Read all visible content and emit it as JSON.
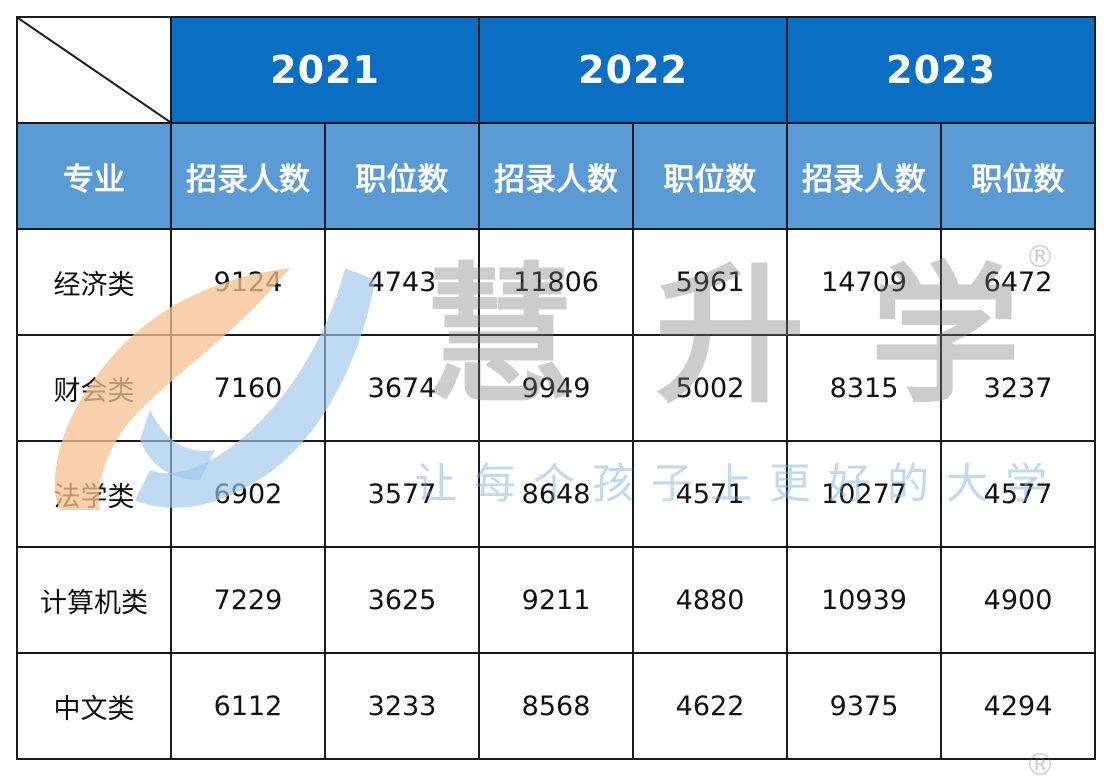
{
  "table": {
    "years": [
      "2021",
      "2022",
      "2023"
    ],
    "major_header": "专业",
    "col_enroll": "招录人数",
    "col_positions": "职位数",
    "rows": [
      {
        "major": "经济类",
        "values": [
          "9124",
          "4743",
          "11806",
          "5961",
          "14709",
          "6472"
        ]
      },
      {
        "major": "财会类",
        "values": [
          "7160",
          "3674",
          "9949",
          "5002",
          "8315",
          "3237"
        ]
      },
      {
        "major": "法学类",
        "values": [
          "6902",
          "3577",
          "8648",
          "4571",
          "10277",
          "4577"
        ]
      },
      {
        "major": "计算机类",
        "values": [
          "7229",
          "3625",
          "9211",
          "4880",
          "10939",
          "4900"
        ]
      },
      {
        "major": "中文类",
        "values": [
          "6112",
          "3233",
          "8568",
          "4622",
          "9375",
          "4294"
        ]
      }
    ]
  },
  "watermark": {
    "chars": [
      "慧",
      "升",
      "学"
    ],
    "slogan": "让每个孩子上更好的大学",
    "reg_mark": "®",
    "logo_colors": {
      "orange": "#f6c08f",
      "blue": "#9cc6ea"
    }
  }
}
